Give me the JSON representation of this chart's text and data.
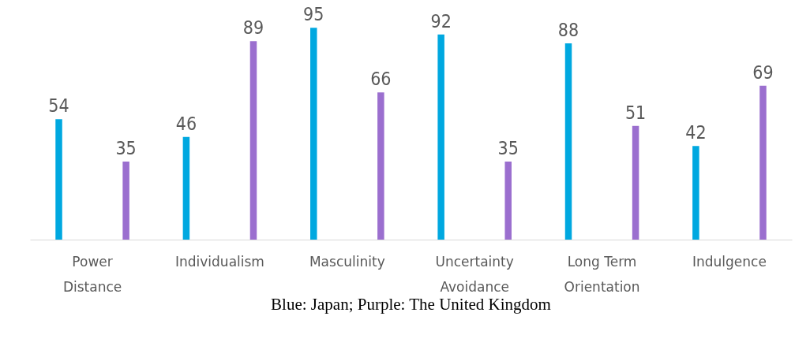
{
  "chart_data": {
    "type": "bar",
    "categories": [
      "Power Distance",
      "Individualism",
      "Masculinity",
      "Uncertainty Avoidance",
      "Long Term Orientation",
      "Indulgence"
    ],
    "series": [
      {
        "color": "#00a8e0",
        "values": [
          54,
          46,
          95,
          92,
          88,
          42
        ]
      },
      {
        "color": "#9b6fcf",
        "values": [
          35,
          89,
          66,
          35,
          51,
          69
        ]
      }
    ],
    "data_labels": true,
    "grid": false,
    "legend": false,
    "annotations": [
      "Blue: Japan; Purple: The United Kingdom"
    ]
  }
}
